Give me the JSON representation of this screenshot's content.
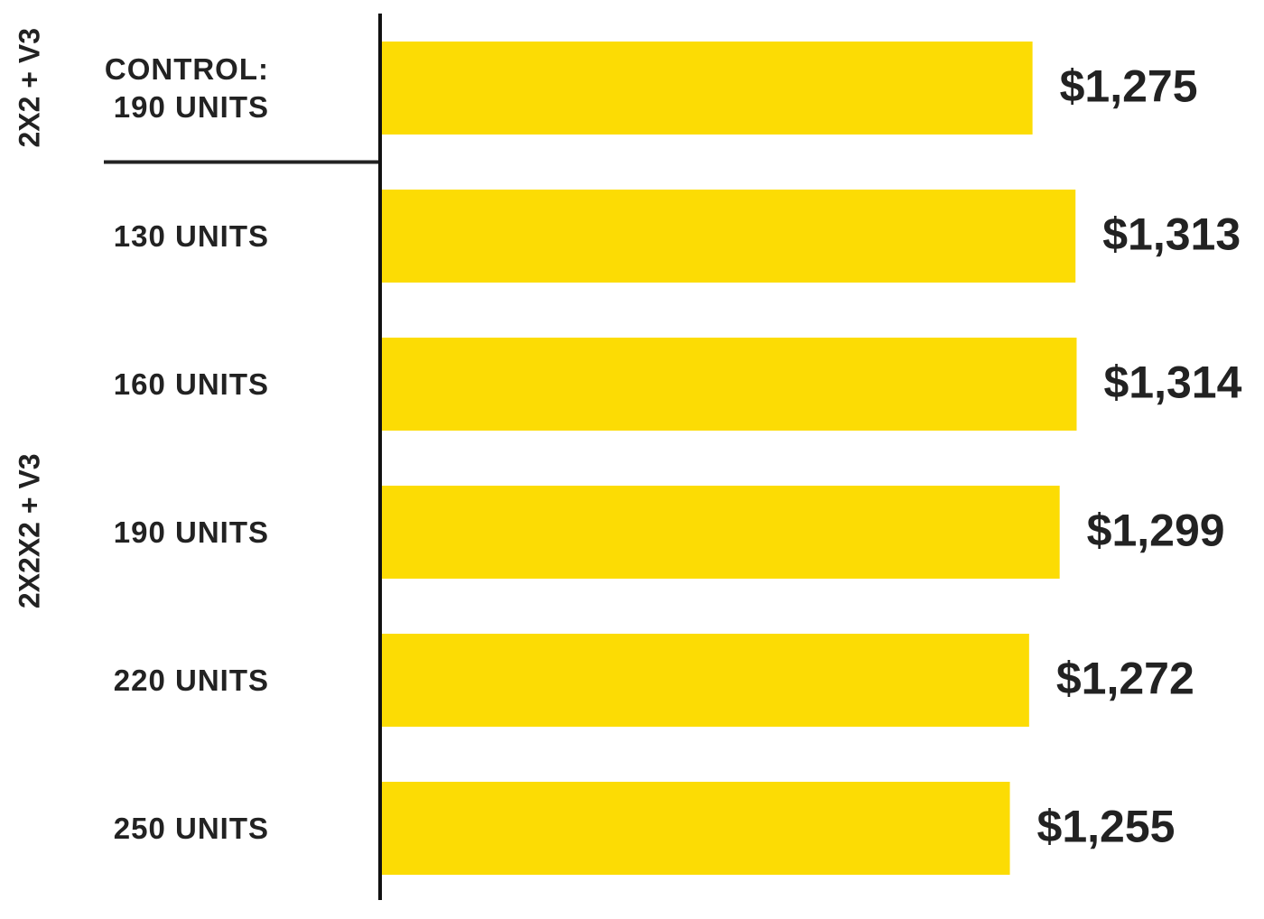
{
  "chart_data": {
    "type": "bar",
    "orientation": "horizontal",
    "color": "#fcdc04",
    "xlim": [
      700,
      1320
    ],
    "groups": [
      {
        "name": "2X2 + V3",
        "categories": [
          "CONTROL: 190 UNITS"
        ],
        "values": [
          1275
        ],
        "value_labels": [
          "$1,275"
        ]
      },
      {
        "name": "2X2X2 + V3",
        "categories": [
          "130 UNITS",
          "160 UNITS",
          "190 UNITS",
          "220 UNITS",
          "250 UNITS"
        ],
        "values": [
          1313,
          1314,
          1299,
          1272,
          1255
        ],
        "value_labels": [
          "$1,313",
          "$1,314",
          "$1,299",
          "$1,272",
          "$1,255"
        ]
      }
    ]
  }
}
